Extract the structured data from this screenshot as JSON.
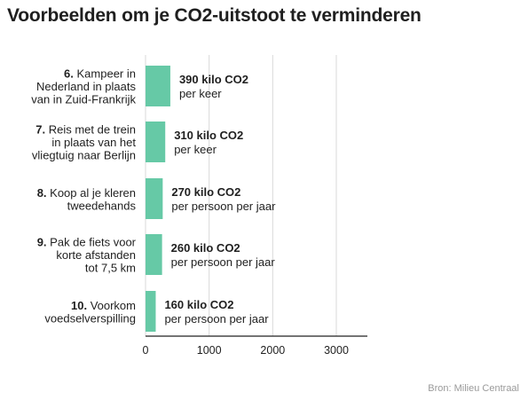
{
  "title": "Voorbeelden om je CO2-uitstoot te verminderen",
  "source": "Bron: Milieu Centraal",
  "colors": {
    "bar": "#66c9a6",
    "grid": "#d9d9d9",
    "axis": "#222222",
    "text": "#1f1f1f"
  },
  "chart_data": {
    "type": "bar",
    "orientation": "horizontal",
    "categories": [
      {
        "number": "6.",
        "lines": [
          "Kampeer in",
          "Nederland in plaats",
          "van in Zuid-Frankrijk"
        ]
      },
      {
        "number": "7.",
        "lines": [
          "Reis met de trein",
          "in plaats van het",
          "vliegtuig naar Berlijn"
        ]
      },
      {
        "number": "8.",
        "lines": [
          "Koop al je kleren",
          "tweedehands"
        ]
      },
      {
        "number": "9.",
        "lines": [
          "Pak de fiets voor",
          "korte afstanden",
          "tot 7,5 km"
        ]
      },
      {
        "number": "10.",
        "lines": [
          "Voorkom",
          "voedselverspilling"
        ]
      }
    ],
    "values": [
      390,
      310,
      270,
      260,
      160
    ],
    "value_labels": [
      "390 kilo CO2",
      "310 kilo CO2",
      "270 kilo CO2",
      "260 kilo CO2",
      "160 kilo CO2"
    ],
    "unit_labels": [
      "per keer",
      "per keer",
      "per persoon per jaar",
      "per persoon per jaar",
      "per persoon per jaar"
    ],
    "xlim": [
      0,
      3500
    ],
    "xticks": [
      0,
      1000,
      2000,
      3000
    ],
    "grid": true
  }
}
